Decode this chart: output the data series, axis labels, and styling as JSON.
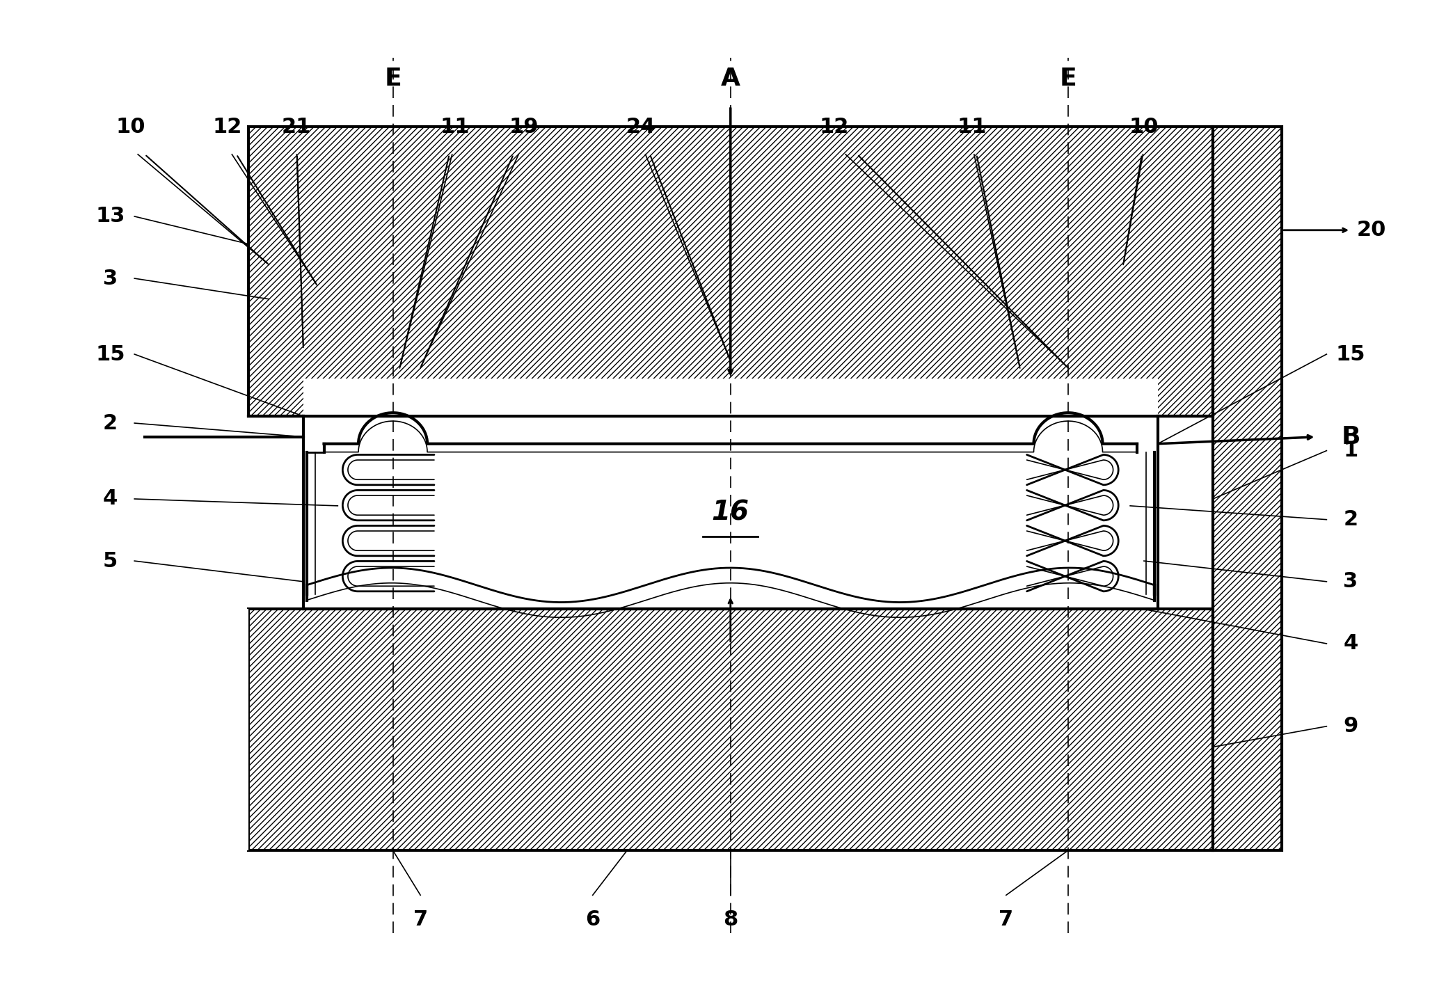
{
  "bg_color": "#ffffff",
  "line_color": "#000000",
  "hatch_color": "#000000",
  "fig_width": 20.55,
  "fig_height": 14.27,
  "dpi": 100,
  "labels": {
    "top_left": [
      "10",
      "12",
      "21",
      "E",
      "11",
      "19",
      "A",
      "24",
      "12",
      "E",
      "11",
      "10"
    ],
    "left_side": [
      "13",
      "3",
      "15",
      "2",
      "4",
      "5"
    ],
    "right_side": [
      "20",
      "B",
      "15",
      "1",
      "2",
      "3",
      "4",
      "9"
    ],
    "bottom": [
      "7",
      "6",
      "8",
      "7"
    ]
  },
  "note_16": "16",
  "upper_component_color": "#e0e0e0",
  "lower_component_color": "#e0e0e0"
}
